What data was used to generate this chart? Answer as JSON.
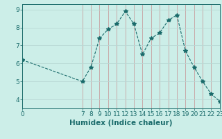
{
  "x": [
    0,
    7,
    8,
    9,
    10,
    11,
    12,
    13,
    14,
    15,
    16,
    17,
    18,
    19,
    20,
    21,
    22,
    23
  ],
  "y": [
    6.2,
    5.0,
    5.8,
    7.4,
    7.9,
    8.2,
    8.9,
    8.2,
    6.5,
    7.4,
    7.7,
    8.4,
    8.7,
    6.7,
    5.8,
    5.0,
    4.3,
    3.9
  ],
  "line_color": "#1a6b6b",
  "marker": "*",
  "marker_size": 4,
  "bg_color": "#cceee8",
  "grid_color_h": "#b8d8d4",
  "grid_color_v": "#c8a0a0",
  "xlabel": "Humidex (Indice chaleur)",
  "xlim": [
    0,
    23
  ],
  "ylim": [
    3.5,
    9.3
  ],
  "yticks": [
    4,
    5,
    6,
    7,
    8,
    9
  ],
  "xticks": [
    0,
    7,
    8,
    9,
    10,
    11,
    12,
    13,
    14,
    15,
    16,
    17,
    18,
    19,
    20,
    21,
    22,
    23
  ],
  "tick_fontsize": 6.5,
  "xlabel_fontsize": 7.5,
  "xlabel_fontweight": "bold"
}
